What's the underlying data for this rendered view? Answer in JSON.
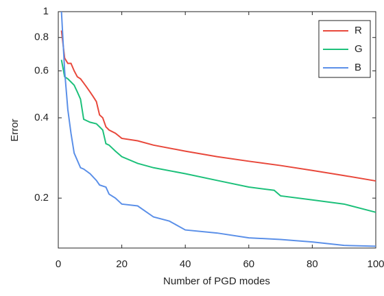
{
  "chart_data": {
    "type": "line",
    "x_label": "Number of PGD modes",
    "y_label": "Error",
    "xlim": [
      0,
      100
    ],
    "xticks": [
      0,
      20,
      40,
      60,
      80,
      100
    ],
    "ylim": [
      0.13,
      1
    ],
    "yticks": [
      0.2,
      0.4,
      0.6,
      0.8,
      1
    ],
    "y_scale": "log",
    "legend_position": "upper right",
    "series": [
      {
        "name": "R",
        "color": "#e8473a",
        "x": [
          1,
          2,
          3,
          4,
          5,
          6,
          7,
          8,
          9,
          10,
          11,
          12,
          13,
          14,
          15,
          16,
          18,
          20,
          25,
          30,
          40,
          50,
          60,
          70,
          80,
          90,
          100
        ],
        "values": [
          0.85,
          0.67,
          0.64,
          0.64,
          0.6,
          0.57,
          0.56,
          0.54,
          0.52,
          0.5,
          0.48,
          0.46,
          0.41,
          0.4,
          0.37,
          0.36,
          0.35,
          0.335,
          0.328,
          0.316,
          0.3,
          0.286,
          0.275,
          0.265,
          0.254,
          0.243,
          0.232
        ]
      },
      {
        "name": "G",
        "color": "#1cc07a",
        "x": [
          1,
          2,
          3,
          4,
          5,
          6,
          7,
          8,
          9,
          10,
          12,
          13,
          14,
          15,
          16,
          18,
          20,
          25,
          30,
          40,
          50,
          60,
          68,
          70,
          80,
          90,
          100
        ],
        "values": [
          0.66,
          0.57,
          0.56,
          0.545,
          0.53,
          0.5,
          0.47,
          0.395,
          0.39,
          0.385,
          0.38,
          0.37,
          0.36,
          0.32,
          0.316,
          0.3,
          0.286,
          0.27,
          0.26,
          0.247,
          0.233,
          0.22,
          0.214,
          0.204,
          0.197,
          0.19,
          0.177
        ]
      },
      {
        "name": "B",
        "color": "#5a8fe8",
        "x": [
          1,
          2,
          3,
          4,
          5,
          7,
          8,
          10,
          12,
          13,
          15,
          16,
          18,
          20,
          25,
          30,
          35,
          40,
          50,
          60,
          70,
          80,
          90,
          100
        ],
        "values": [
          1,
          0.6,
          0.43,
          0.35,
          0.295,
          0.26,
          0.257,
          0.247,
          0.233,
          0.224,
          0.22,
          0.207,
          0.2,
          0.19,
          0.187,
          0.17,
          0.164,
          0.152,
          0.148,
          0.142,
          0.14,
          0.137,
          0.133,
          0.132
        ]
      }
    ]
  }
}
